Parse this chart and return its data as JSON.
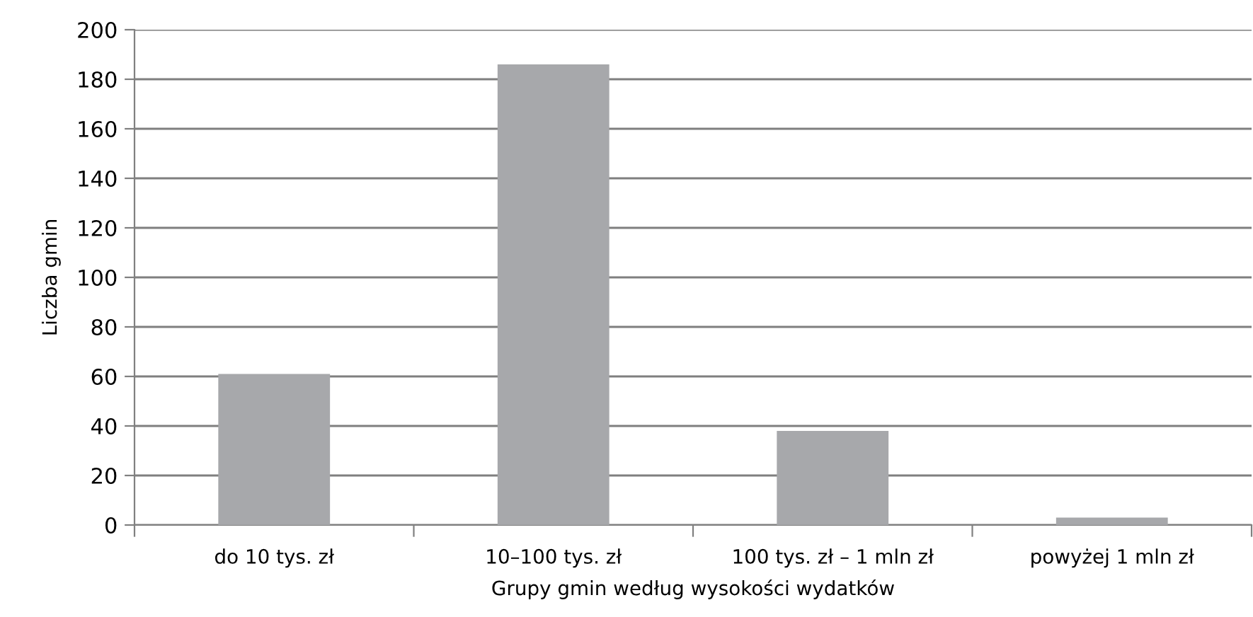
{
  "chart_data": {
    "type": "bar",
    "xlabel": "Grupy gmin według wysokości wydatków",
    "ylabel": "Liczba gmin",
    "categories": [
      "do 10 tys. zł",
      "10–100 tys. zł",
      "100 tys. zł – 1 mln zł",
      "powyżej 1 mln zł"
    ],
    "values": [
      61,
      186,
      38,
      3
    ],
    "color": "#a7a8ab",
    "ylim": [
      0,
      200
    ],
    "yticks": [
      0,
      20,
      40,
      60,
      80,
      100,
      120,
      140,
      160,
      180,
      200
    ],
    "grid": "y"
  }
}
